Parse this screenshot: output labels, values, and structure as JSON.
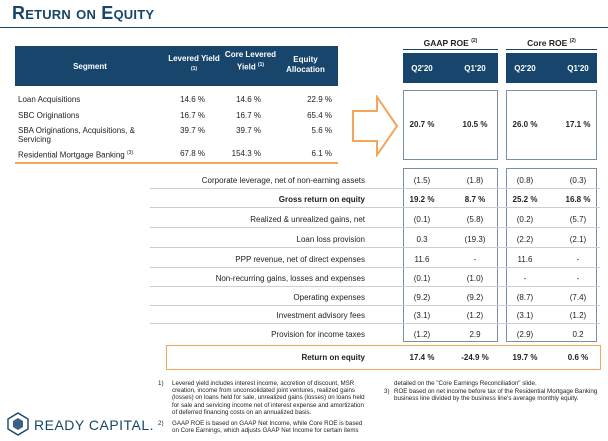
{
  "title": "Return on Equity",
  "seg_table": {
    "headers": {
      "segment": "Segment",
      "levered": "Levered Yield",
      "levered_fn": "(1)",
      "core": "Core Levered Yield",
      "core_fn": "(1)",
      "alloc": "Equity Allocation"
    },
    "rows": [
      {
        "name": "Loan Acquisitions",
        "levered": "14.6 %",
        "core": "14.6 %",
        "alloc": "22.9 %",
        "fn": ""
      },
      {
        "name": "SBC Originations",
        "levered": "16.7 %",
        "core": "16.7 %",
        "alloc": "65.4 %",
        "fn": ""
      },
      {
        "name": "SBA Originations, Acquisitions, & Servicing",
        "levered": "39.7 %",
        "core": "39.7 %",
        "alloc": "5.6 %",
        "fn": ""
      },
      {
        "name": "Residential Mortgage Banking",
        "levered": "67.8 %",
        "core": "154.3 %",
        "alloc": "6.1 %",
        "fn": "(3)"
      }
    ]
  },
  "roe": {
    "gaap_label": "GAAP ROE",
    "gaap_fn": "(2)",
    "core_label": "Core ROE",
    "core_fn": "(2)",
    "cols": [
      "Q2'20",
      "Q1'20",
      "Q2'20",
      "Q1'20"
    ],
    "summary": [
      "20.7 %",
      "10.5 %",
      "26.0 %",
      "17.1 %"
    ]
  },
  "bridge": [
    {
      "label": "Corporate leverage, net of non-earning assets",
      "vals": [
        "(1.5)",
        "(1.8)",
        "(0.8)",
        "(0.3)"
      ],
      "bold": false
    },
    {
      "label": "Gross return on equity",
      "vals": [
        "19.2 %",
        "8.7 %",
        "25.2 %",
        "16.8 %"
      ],
      "bold": true
    },
    {
      "label": "Realized & unrealized gains, net",
      "vals": [
        "(0.1)",
        "(5.8)",
        "(0.2)",
        "(5.7)"
      ],
      "bold": false
    },
    {
      "label": "Loan loss provision",
      "vals": [
        "0.3",
        "(19.3)",
        "(2.2)",
        "(2.1)"
      ],
      "bold": false
    },
    {
      "label": "PPP revenue, net of direct expenses",
      "vals": [
        "11.6",
        "-",
        "11.6",
        "-"
      ],
      "bold": false
    },
    {
      "label": "Non-recurring gains, losses and expenses",
      "vals": [
        "(0.1)",
        "(1.0)",
        "-",
        "-"
      ],
      "bold": false
    },
    {
      "label": "Operating expenses",
      "vals": [
        "(9.2)",
        "(9.2)",
        "(8.7)",
        "(7.4)"
      ],
      "bold": false
    },
    {
      "label": "Investment advisory fees",
      "vals": [
        "(3.1)",
        "(1.2)",
        "(3.1)",
        "(1.2)"
      ],
      "bold": false
    },
    {
      "label": "Provision for income taxes",
      "vals": [
        "(1.2)",
        "2.9",
        "(2.9)",
        "0.2"
      ],
      "bold": false
    }
  ],
  "final": {
    "label": "Return on equity",
    "vals": [
      "17.4 %",
      "-24.9 %",
      "19.7 %",
      "0.6 %"
    ]
  },
  "footnotes": {
    "fn1_num": "1)",
    "fn1": "Levered yield includes interest income, accretion of discount, MSR creation, income from unconsolidated joint ventures, realized gains (losses) on loans held for sale, unrealized gains (losses) on loans held for sale and servicing income net of interest expense and amortization of deferred financing costs on an annualized basis.",
    "fn2_num": "2)",
    "fn2": "GAAP ROE is based on GAAP Net Income, while Core ROE is based on Core Earnings, which adjusts GAAP Net Income for certain items",
    "fn2_cont": "detailed on the \"Core Earnings Reconciliation\" slide.",
    "fn3_num": "3)",
    "fn3": "ROE based on net income before tax of the Residential Mortgage Banking business line divided by the business line's average monthly equity."
  },
  "logo": {
    "text": "READY CAPITAL."
  },
  "colors": {
    "navy": "#17456b",
    "orange": "#f2a65a",
    "light": "#b9c8d9"
  }
}
